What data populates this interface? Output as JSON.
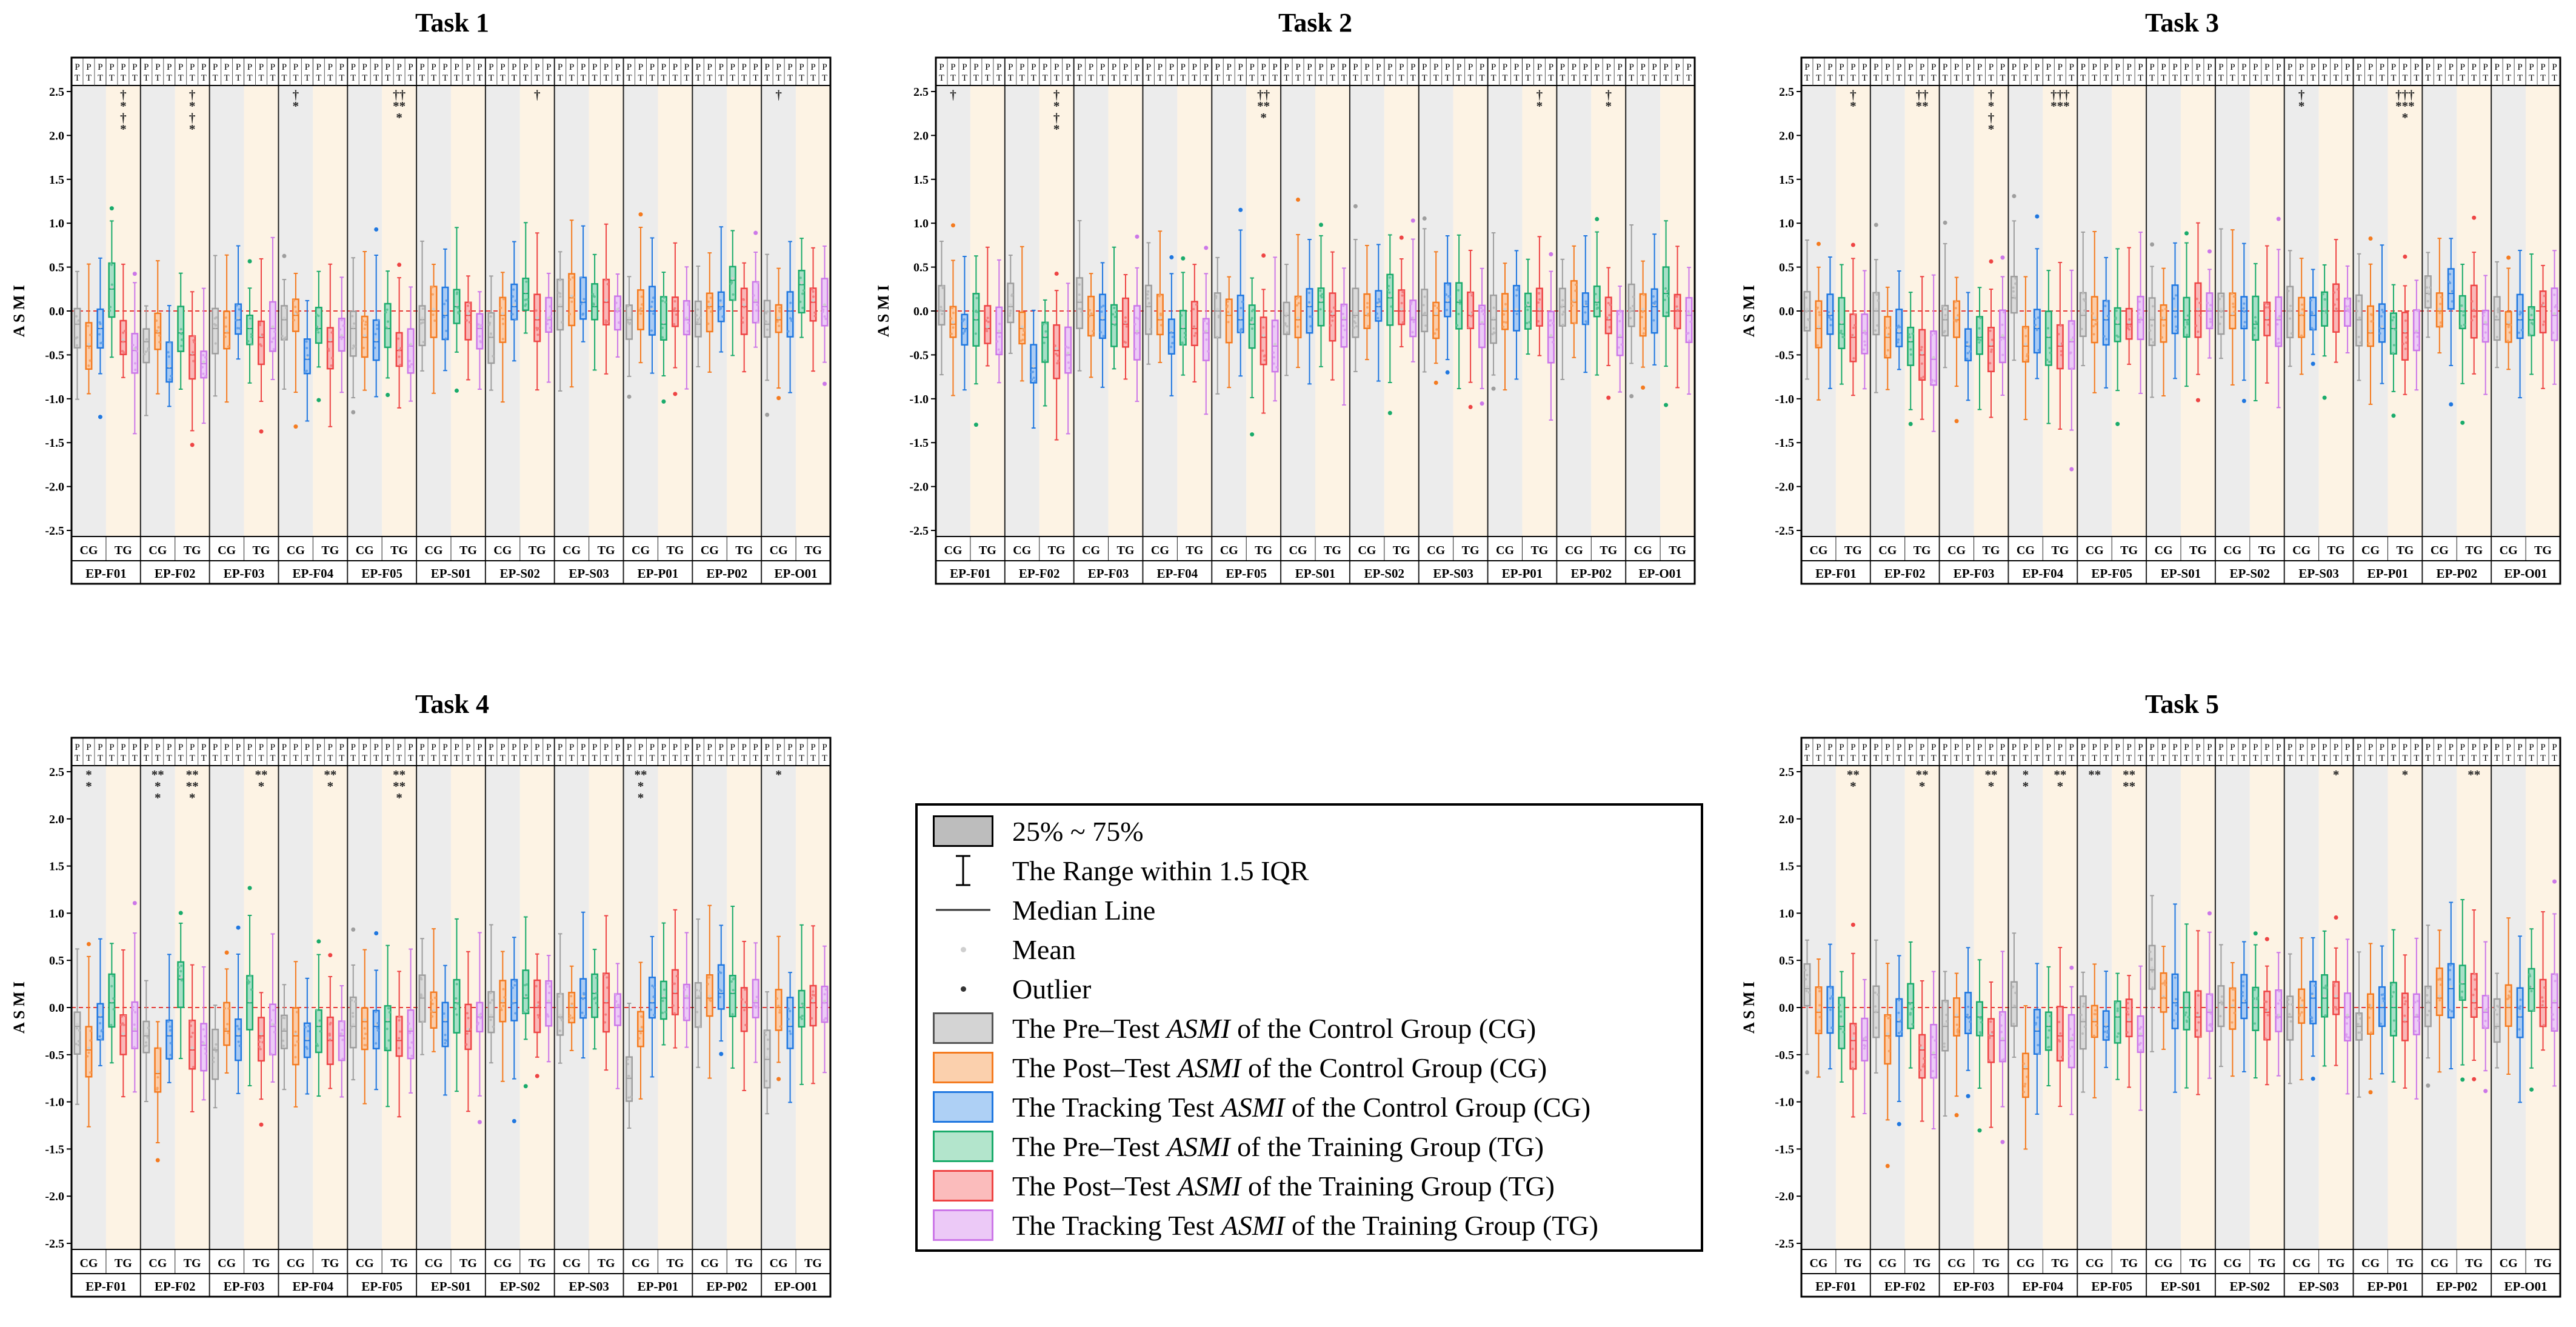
{
  "chart_data": {
    "type": "box",
    "layout": "2x3 grid of panels with the legend occupying the middle cell of the bottom row",
    "y_axis": {
      "label": "A S M I",
      "lim": [
        -2.5,
        2.5
      ],
      "ticks": [
        "2.5",
        "2.0",
        "1.5",
        "1.0",
        "0.5",
        "0.0",
        "-0.5",
        "-1.0",
        "-1.5",
        "-2.0",
        "-2.5"
      ],
      "reference_line": 0.0
    },
    "stages": [
      "Pre-Test",
      "Post-Test",
      "Tracking Test"
    ],
    "top_labels": [
      "PT",
      "PT",
      "PT",
      "PT",
      "PT",
      "PT",
      "PT",
      "PT",
      "PT",
      "PT",
      "PT"
    ],
    "groups": [
      "CG",
      "TG"
    ],
    "categories": [
      "EP-F01",
      "EP-F02",
      "EP-F03",
      "EP-F04",
      "EP-F05",
      "EP-S01",
      "EP-S02",
      "EP-S03",
      "EP-P01",
      "EP-P02",
      "EP-O01"
    ],
    "series_colors": {
      "cg_pre": "#9e9e9e",
      "cg_post": "#f47b20",
      "cg_track": "#1f77e0",
      "tg_pre": "#1aab6b",
      "tg_post": "#ee4444",
      "tg_track": "#cc77e8"
    },
    "panels": [
      {
        "title": "Task 1",
        "medians": {
          "cg_pre": [
            -0.15,
            -0.35,
            -0.2,
            -0.1,
            -0.2,
            -0.1,
            -0.3,
            0.05,
            -0.1,
            -0.15,
            -0.15
          ],
          "cg_post": [
            -0.4,
            -0.25,
            -0.25,
            -0.05,
            -0.3,
            0.0,
            -0.05,
            0.15,
            0.0,
            0.05,
            -0.1
          ],
          "cg_track": [
            -0.2,
            -0.65,
            -0.1,
            -0.55,
            -0.35,
            -0.05,
            0.05,
            0.1,
            0.0,
            0.05,
            0.0
          ],
          "tg_pre": [
            0.25,
            -0.25,
            -0.2,
            -0.2,
            -0.2,
            0.05,
            0.2,
            0.05,
            -0.15,
            0.35,
            0.3
          ],
          "tg_post": [
            -0.35,
            -0.5,
            -0.3,
            -0.35,
            -0.45,
            -0.05,
            -0.1,
            0.1,
            0.0,
            0.05,
            0.1
          ],
          "tg_track": [
            -0.45,
            -0.6,
            -0.2,
            -0.3,
            -0.4,
            -0.2,
            -0.1,
            0.0,
            -0.1,
            0.1,
            0.05
          ]
        },
        "significance": [
          {
            "category": "EP-F01",
            "group": "TG",
            "marks": [
              "†",
              "*",
              "†",
              "*"
            ]
          },
          {
            "category": "EP-F02",
            "group": "TG",
            "marks": [
              "†",
              "*",
              "†",
              "*"
            ]
          },
          {
            "category": "EP-F04",
            "group": "CG",
            "marks": [
              "†",
              "*"
            ]
          },
          {
            "category": "EP-F05",
            "group": "TG",
            "marks": [
              "††",
              "**",
              "*"
            ]
          },
          {
            "category": "EP-S02",
            "group": "TG",
            "marks": [
              "†"
            ]
          },
          {
            "category": "EP-O01",
            "group": "CG",
            "marks": [
              "†"
            ]
          }
        ]
      },
      {
        "title": "Task 2",
        "medians": {
          "cg_pre": [
            0.0,
            0.05,
            0.1,
            0.05,
            0.0,
            -0.05,
            -0.05,
            -0.05,
            -0.1,
            0.05,
            0.0
          ],
          "cg_post": [
            -0.15,
            -0.2,
            -0.05,
            -0.1,
            -0.05,
            -0.1,
            -0.05,
            -0.05,
            0.0,
            0.1,
            0.0
          ],
          "cg_track": [
            -0.2,
            -0.65,
            -0.1,
            -0.25,
            -0.1,
            0.05,
            0.05,
            0.1,
            0.0,
            0.05,
            0.05
          ],
          "tg_pre": [
            -0.1,
            -0.3,
            -0.15,
            -0.2,
            -0.15,
            0.1,
            0.15,
            0.1,
            0.05,
            0.1,
            0.2
          ],
          "tg_post": [
            -0.2,
            -0.45,
            -0.15,
            -0.2,
            -0.3,
            -0.05,
            0.0,
            -0.05,
            0.0,
            -0.1,
            0.0
          ],
          "tg_track": [
            -0.25,
            -0.5,
            -0.25,
            -0.25,
            -0.4,
            -0.1,
            -0.1,
            -0.15,
            -0.3,
            -0.3,
            -0.05
          ]
        },
        "significance": [
          {
            "category": "EP-F01",
            "group": "CG",
            "marks": [
              "†"
            ]
          },
          {
            "category": "EP-F02",
            "group": "TG",
            "marks": [
              "†",
              "*",
              "†",
              "*"
            ]
          },
          {
            "category": "EP-F05",
            "group": "TG",
            "marks": [
              "††",
              "**",
              "*"
            ]
          },
          {
            "category": "EP-P01",
            "group": "TG",
            "marks": [
              "†",
              "*"
            ]
          },
          {
            "category": "EP-P02",
            "group": "TG",
            "marks": [
              "†",
              "*"
            ]
          }
        ]
      },
      {
        "title": "Task 3",
        "medians": {
          "cg_pre": [
            0.0,
            0.0,
            -0.1,
            0.15,
            -0.05,
            -0.1,
            0.0,
            0.0,
            -0.1,
            0.2,
            -0.1
          ],
          "cg_post": [
            -0.2,
            -0.3,
            -0.1,
            -0.4,
            -0.1,
            -0.1,
            -0.05,
            -0.05,
            -0.25,
            0.0,
            -0.15
          ],
          "cg_track": [
            -0.05,
            -0.25,
            -0.4,
            -0.2,
            -0.1,
            0.0,
            0.0,
            -0.05,
            -0.2,
            0.2,
            -0.1
          ],
          "tg_pre": [
            -0.15,
            -0.35,
            -0.3,
            -0.3,
            -0.15,
            -0.1,
            -0.15,
            0.0,
            -0.2,
            0.0,
            -0.1
          ],
          "tg_post": [
            -0.3,
            -0.5,
            -0.4,
            -0.4,
            -0.15,
            0.0,
            -0.1,
            0.0,
            -0.25,
            0.0,
            0.05
          ],
          "tg_track": [
            -0.25,
            -0.55,
            -0.3,
            -0.35,
            -0.1,
            0.0,
            -0.1,
            0.0,
            -0.25,
            -0.15,
            -0.05
          ]
        },
        "significance": [
          {
            "category": "EP-F01",
            "group": "TG",
            "marks": [
              "†",
              "*"
            ]
          },
          {
            "category": "EP-F02",
            "group": "TG",
            "marks": [
              "††",
              "**"
            ]
          },
          {
            "category": "EP-F03",
            "group": "TG",
            "marks": [
              "†",
              "*",
              "†",
              "*"
            ]
          },
          {
            "category": "EP-F04",
            "group": "TG",
            "marks": [
              "†††",
              "***"
            ]
          },
          {
            "category": "EP-S03",
            "group": "CG",
            "marks": [
              "†",
              "*"
            ]
          },
          {
            "category": "EP-P01",
            "group": "TG",
            "marks": [
              "†††",
              "***",
              "*"
            ]
          }
        ]
      },
      {
        "title": "Task 4",
        "medians": {
          "cg_pre": [
            -0.2,
            -0.3,
            -0.45,
            -0.25,
            -0.2,
            0.1,
            -0.1,
            -0.1,
            -0.75,
            0.1,
            -0.55
          ],
          "cg_post": [
            -0.45,
            -0.7,
            -0.25,
            -0.3,
            -0.15,
            -0.05,
            0.05,
            0.0,
            -0.25,
            0.1,
            0.0
          ],
          "cg_track": [
            -0.1,
            -0.3,
            -0.3,
            -0.35,
            -0.2,
            -0.15,
            0.05,
            0.1,
            0.05,
            0.15,
            -0.2
          ],
          "tg_pre": [
            0.05,
            0.3,
            0.05,
            -0.2,
            -0.15,
            0.05,
            0.1,
            0.15,
            0.1,
            0.15,
            0.0
          ],
          "tg_post": [
            -0.3,
            -0.45,
            -0.3,
            -0.35,
            -0.35,
            -0.25,
            0.0,
            0.05,
            0.15,
            0.0,
            0.05
          ],
          "tg_track": [
            -0.25,
            -0.4,
            -0.2,
            -0.3,
            -0.25,
            -0.1,
            0.05,
            0.0,
            0.1,
            0.05,
            0.05
          ]
        },
        "significance": [
          {
            "category": "EP-F01",
            "group": "CG",
            "marks": [
              "*",
              "*"
            ]
          },
          {
            "category": "EP-F02",
            "group": "CG",
            "marks": [
              "**",
              "*",
              "*"
            ]
          },
          {
            "category": "EP-F02",
            "group": "TG",
            "marks": [
              "**",
              "**",
              "*"
            ]
          },
          {
            "category": "EP-F03",
            "group": "TG",
            "marks": [
              "**",
              "*"
            ]
          },
          {
            "category": "EP-F04",
            "group": "TG",
            "marks": [
              "**",
              "*"
            ]
          },
          {
            "category": "EP-F05",
            "group": "TG",
            "marks": [
              "**",
              "**",
              "*"
            ]
          },
          {
            "category": "EP-P01",
            "group": "CG",
            "marks": [
              "**",
              "*",
              "*"
            ]
          },
          {
            "category": "EP-O01",
            "group": "CG",
            "marks": [
              "*"
            ]
          }
        ]
      },
      {
        "title": "Task 5",
        "medians": {
          "cg_pre": [
            0.2,
            -0.05,
            -0.2,
            0.0,
            -0.15,
            0.4,
            0.05,
            -0.1,
            -0.2,
            0.05,
            -0.2
          ],
          "cg_post": [
            -0.05,
            -0.3,
            -0.1,
            -0.65,
            -0.15,
            0.1,
            0.0,
            0.0,
            0.0,
            0.1,
            0.0
          ],
          "cg_track": [
            0.0,
            -0.15,
            -0.1,
            -0.25,
            -0.2,
            0.05,
            0.05,
            0.1,
            0.0,
            0.2,
            -0.1
          ],
          "tg_pre": [
            -0.2,
            0.05,
            -0.1,
            -0.2,
            -0.1,
            0.0,
            0.0,
            0.1,
            0.0,
            0.25,
            0.2
          ],
          "tg_post": [
            -0.35,
            -0.45,
            -0.3,
            -0.3,
            -0.15,
            -0.1,
            -0.05,
            0.1,
            -0.15,
            0.05,
            0.0
          ],
          "tg_track": [
            -0.35,
            -0.5,
            -0.35,
            -0.35,
            -0.3,
            -0.05,
            -0.1,
            -0.1,
            -0.1,
            -0.05,
            0.05
          ]
        },
        "significance": [
          {
            "category": "EP-F01",
            "group": "TG",
            "marks": [
              "**",
              "*"
            ]
          },
          {
            "category": "EP-F02",
            "group": "TG",
            "marks": [
              "**",
              "*"
            ]
          },
          {
            "category": "EP-F03",
            "group": "TG",
            "marks": [
              "**",
              "*"
            ]
          },
          {
            "category": "EP-F04",
            "group": "CG",
            "marks": [
              "*",
              "*"
            ]
          },
          {
            "category": "EP-F04",
            "group": "TG",
            "marks": [
              "**",
              "*"
            ]
          },
          {
            "category": "EP-F05",
            "group": "CG",
            "marks": [
              "**"
            ]
          },
          {
            "category": "EP-F05",
            "group": "TG",
            "marks": [
              "**",
              "**"
            ]
          },
          {
            "category": "EP-S03",
            "group": "TG",
            "marks": [
              "*"
            ]
          },
          {
            "category": "EP-P01",
            "group": "TG",
            "marks": [
              "*"
            ]
          },
          {
            "category": "EP-P02",
            "group": "TG",
            "marks": [
              "**"
            ]
          }
        ]
      }
    ]
  },
  "legend": {
    "items": [
      {
        "kind": "box",
        "color": "#9e9e9e",
        "label": "25% ~ 75%"
      },
      {
        "kind": "whisker",
        "color": "#000000",
        "label": "The Range within 1.5 IQR"
      },
      {
        "kind": "line",
        "color": "#000000",
        "label": "Median Line"
      },
      {
        "kind": "mean",
        "color": "#bdbdbd",
        "label": "Mean"
      },
      {
        "kind": "outlier",
        "color": "#000000",
        "label": "Outlier"
      },
      {
        "kind": "box",
        "color": "#9e9e9e",
        "label_pre": "The Pre–Test ",
        "label_em": "ASMI",
        "label_post": " of the Control Group (CG)"
      },
      {
        "kind": "box",
        "color": "#f47b20",
        "label_pre": "The Post–Test ",
        "label_em": "ASMI",
        "label_post": " of the Control Group (CG)"
      },
      {
        "kind": "box",
        "color": "#1f77e0",
        "label_pre": "The Tracking Test ",
        "label_em": "ASMI",
        "label_post": " of the Control Group (CG)"
      },
      {
        "kind": "box",
        "color": "#1aab6b",
        "label_pre": "The Pre–Test ",
        "label_em": "ASMI",
        "label_post": " of the Training Group (TG)"
      },
      {
        "kind": "box",
        "color": "#ee4444",
        "label_pre": "The Post–Test ",
        "label_em": "ASMI",
        "label_post": " of the Training Group (TG)"
      },
      {
        "kind": "box",
        "color": "#cc77e8",
        "label_pre": "The Tracking Test ",
        "label_em": "ASMI",
        "label_post": " of the Training Group (TG)"
      }
    ]
  }
}
